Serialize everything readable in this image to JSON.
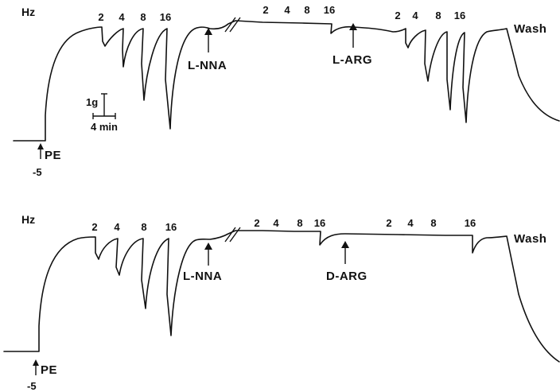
{
  "panels": [
    {
      "hz_label": "Hz",
      "freq_before": [
        "2",
        "4",
        "8",
        "16"
      ],
      "freq_mid": [
        "2",
        "4",
        "8",
        "16"
      ],
      "freq_after": [
        "2",
        "4",
        "8",
        "16"
      ],
      "drug_1": "L-NNA",
      "drug_2": "L-ARG",
      "wash_label": "Wash",
      "pe_label": "PE",
      "pe_value": "-5"
    },
    {
      "hz_label": "Hz",
      "freq_before": [
        "2",
        "4",
        "8",
        "16"
      ],
      "freq_mid": [
        "2",
        "4",
        "8",
        "16"
      ],
      "freq_after": [
        "2",
        "4",
        "8",
        "16"
      ],
      "drug_1": "L-NNA",
      "drug_2": "D-ARG",
      "wash_label": "Wash",
      "pe_label": "PE",
      "pe_value": "-5"
    }
  ],
  "scale_bar": {
    "force": "1g",
    "time": "4 min"
  }
}
